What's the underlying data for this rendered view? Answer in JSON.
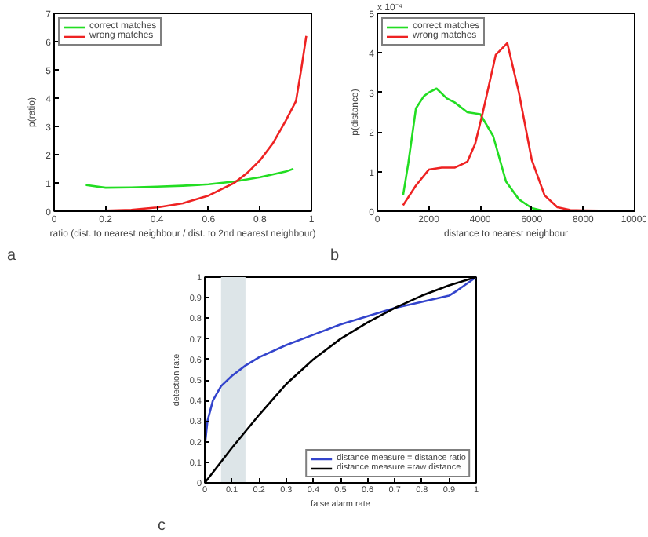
{
  "chart_data": [
    {
      "type": "line",
      "xlabel": "ratio (dist. to nearest neighbour / dist. to 2nd nearest neighbour)",
      "ylabel": "p(ratio)",
      "xlim": [
        0,
        1
      ],
      "ylim": [
        0,
        7
      ],
      "xticks": [
        0,
        0.2,
        0.4,
        0.6,
        0.8,
        1
      ],
      "yticks": [
        0,
        1,
        2,
        3,
        4,
        5,
        6,
        7
      ],
      "grid": false,
      "legend": "top left",
      "annotations": [
        "a"
      ],
      "series": [
        {
          "name": "correct matches",
          "color": "#22dd22",
          "x": [
            0.12,
            0.2,
            0.3,
            0.4,
            0.5,
            0.6,
            0.7,
            0.8,
            0.9,
            0.93
          ],
          "values": [
            0.93,
            0.83,
            0.84,
            0.87,
            0.9,
            0.95,
            1.05,
            1.2,
            1.4,
            1.5
          ]
        },
        {
          "name": "wrong matches",
          "color": "#ee2222",
          "x": [
            0.12,
            0.2,
            0.3,
            0.4,
            0.5,
            0.6,
            0.7,
            0.75,
            0.8,
            0.85,
            0.9,
            0.94,
            0.96,
            0.98
          ],
          "values": [
            0.0,
            0.02,
            0.05,
            0.13,
            0.28,
            0.55,
            1.0,
            1.35,
            1.8,
            2.4,
            3.2,
            3.9,
            5.0,
            6.2
          ]
        }
      ]
    },
    {
      "type": "line",
      "xlabel": "distance to nearest neighbour",
      "ylabel": "p(distance)",
      "xlim": [
        0,
        10000
      ],
      "ylim": [
        0,
        5
      ],
      "xticks": [
        0,
        2000,
        4000,
        6000,
        8000,
        10000
      ],
      "yticks": [
        0,
        1,
        2,
        3,
        4,
        5
      ],
      "grid": false,
      "legend": "top left",
      "annotations": [
        "x 10⁻⁴",
        "b"
      ],
      "series": [
        {
          "name": "correct matches",
          "color": "#22dd22",
          "x": [
            1000,
            1200,
            1500,
            1800,
            2000,
            2300,
            2700,
            3000,
            3500,
            4000,
            4500,
            5000,
            5500,
            6000,
            6500,
            7000
          ],
          "values": [
            0.4,
            1.2,
            2.6,
            2.9,
            3.0,
            3.1,
            2.85,
            2.75,
            2.5,
            2.45,
            1.9,
            0.75,
            0.3,
            0.08,
            0.0,
            0.0
          ]
        },
        {
          "name": "wrong matches",
          "color": "#ee2222",
          "x": [
            1000,
            1500,
            2000,
            2500,
            3000,
            3500,
            3800,
            4100,
            4600,
            5050,
            5500,
            6000,
            6500,
            7000,
            7500,
            8000,
            9500
          ],
          "values": [
            0.15,
            0.65,
            1.05,
            1.1,
            1.1,
            1.25,
            1.7,
            2.5,
            3.95,
            4.25,
            3.0,
            1.3,
            0.4,
            0.1,
            0.03,
            0.02,
            0.0
          ]
        }
      ]
    },
    {
      "type": "line",
      "xlabel": "false alarm rate",
      "ylabel": "detection rate",
      "xlim": [
        0,
        1
      ],
      "ylim": [
        0,
        1
      ],
      "xticks": [
        0,
        0.1,
        0.2,
        0.3,
        0.4,
        0.5,
        0.6,
        0.7,
        0.8,
        0.9,
        1
      ],
      "yticks": [
        0,
        0.1,
        0.2,
        0.3,
        0.4,
        0.5,
        0.6,
        0.7,
        0.8,
        0.9,
        1
      ],
      "grid": false,
      "legend": "bottom right",
      "annotations": [
        "c"
      ],
      "bands": [
        {
          "axis": "x",
          "from": 0.06,
          "to": 0.15,
          "color": "#dde5e8"
        }
      ],
      "series": [
        {
          "name": "distance measure = distance ratio",
          "color": "#3344cc",
          "x": [
            0,
            0.002,
            0.01,
            0.03,
            0.06,
            0.1,
            0.15,
            0.2,
            0.3,
            0.4,
            0.5,
            0.6,
            0.7,
            0.8,
            0.9,
            0.93,
            1
          ],
          "values": [
            0,
            0.2,
            0.3,
            0.4,
            0.47,
            0.52,
            0.57,
            0.61,
            0.67,
            0.72,
            0.77,
            0.81,
            0.85,
            0.88,
            0.91,
            0.935,
            1
          ]
        },
        {
          "name": "distance measure =raw distance",
          "color": "#000000",
          "x": [
            0,
            0.1,
            0.2,
            0.3,
            0.4,
            0.5,
            0.6,
            0.7,
            0.8,
            0.9,
            1
          ],
          "values": [
            0,
            0.17,
            0.33,
            0.48,
            0.6,
            0.7,
            0.78,
            0.85,
            0.91,
            0.96,
            1
          ]
        }
      ]
    }
  ]
}
